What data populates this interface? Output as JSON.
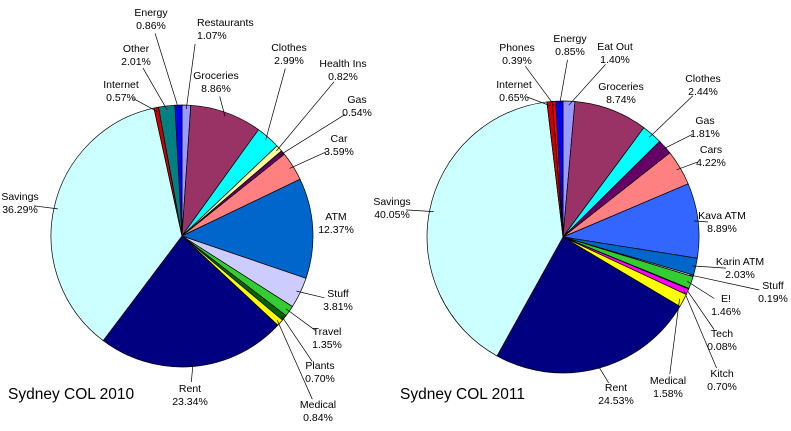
{
  "chart_data": [
    {
      "type": "pie",
      "title": "Sydney COL 2010",
      "slices": [
        {
          "label": "Restaurants",
          "value": 1.07,
          "display": "1.07%",
          "color": "#9999ff"
        },
        {
          "label": "Groceries",
          "value": 8.86,
          "display": "8.86%",
          "color": "#993366"
        },
        {
          "label": "Clothes",
          "value": 2.99,
          "display": "2.99%",
          "color": "#00ffff"
        },
        {
          "label": "Health Ins",
          "value": 0.82,
          "display": "0.82%",
          "color": "#ffff99"
        },
        {
          "label": "Gas",
          "value": 0.54,
          "display": "0.54%",
          "color": "#660066"
        },
        {
          "label": "Car",
          "value": 3.59,
          "display": "3.59%",
          "color": "#ff8080"
        },
        {
          "label": "ATM",
          "value": 12.37,
          "display": "12.37%",
          "color": "#0066cc"
        },
        {
          "label": "Stuff",
          "value": 3.81,
          "display": "3.81%",
          "color": "#ccccff"
        },
        {
          "label": "Travel",
          "value": 1.35,
          "display": "1.35%",
          "color": "#33cc33"
        },
        {
          "label": "Plants",
          "value": 0.7,
          "display": "0.70%",
          "color": "#006600"
        },
        {
          "label": "Medical",
          "value": 0.84,
          "display": "0.84%",
          "color": "#ffff00"
        },
        {
          "label": "Rent",
          "value": 23.34,
          "display": "23.34%",
          "color": "#000080"
        },
        {
          "label": "Savings",
          "value": 36.29,
          "display": "36.29%",
          "color": "#ccffff"
        },
        {
          "label": "Internet",
          "value": 0.57,
          "display": "0.57%",
          "color": "#cc0000"
        },
        {
          "label": "Other",
          "value": 2.01,
          "display": "2.01%",
          "color": "#008080"
        },
        {
          "label": "Energy",
          "value": 0.86,
          "display": "0.86%",
          "color": "#0000ff"
        }
      ]
    },
    {
      "type": "pie",
      "title": "Sydney COL 2011",
      "slices": [
        {
          "label": "Eat Out",
          "value": 1.4,
          "display": "1.40%",
          "color": "#9999ff"
        },
        {
          "label": "Groceries",
          "value": 8.74,
          "display": "8.74%",
          "color": "#993366"
        },
        {
          "label": "Clothes",
          "value": 2.44,
          "display": "2.44%",
          "color": "#00ffff"
        },
        {
          "label": "Gas",
          "value": 1.81,
          "display": "1.81%",
          "color": "#660066"
        },
        {
          "label": "Cars",
          "value": 4.22,
          "display": "4.22%",
          "color": "#ff8080"
        },
        {
          "label": "Kava ATM",
          "value": 8.89,
          "display": "8.89%",
          "color": "#3366ff"
        },
        {
          "label": "Karin ATM",
          "value": 2.03,
          "display": "2.03%",
          "color": "#0066cc"
        },
        {
          "label": "Stuff",
          "value": 0.19,
          "display": "0.19%",
          "color": "#ccccff"
        },
        {
          "label": "E!",
          "value": 1.46,
          "display": "1.46%",
          "color": "#33cc33"
        },
        {
          "label": "Tech",
          "value": 0.08,
          "display": "0.08%",
          "color": "#008080"
        },
        {
          "label": "Kitch",
          "value": 0.7,
          "display": "0.70%",
          "color": "#ff00ff"
        },
        {
          "label": "Medical",
          "value": 1.58,
          "display": "1.58%",
          "color": "#ffff00"
        },
        {
          "label": "Rent",
          "value": 24.53,
          "display": "24.53%",
          "color": "#000080"
        },
        {
          "label": "Savings",
          "value": 40.05,
          "display": "40.05%",
          "color": "#ccffff"
        },
        {
          "label": "Internet",
          "value": 0.65,
          "display": "0.65%",
          "color": "#cc0000"
        },
        {
          "label": "Phones",
          "value": 0.39,
          "display": "0.39%",
          "color": "#ff0000"
        },
        {
          "label": "Energy",
          "value": 0.85,
          "display": "0.85%",
          "color": "#0000ff"
        }
      ]
    }
  ]
}
